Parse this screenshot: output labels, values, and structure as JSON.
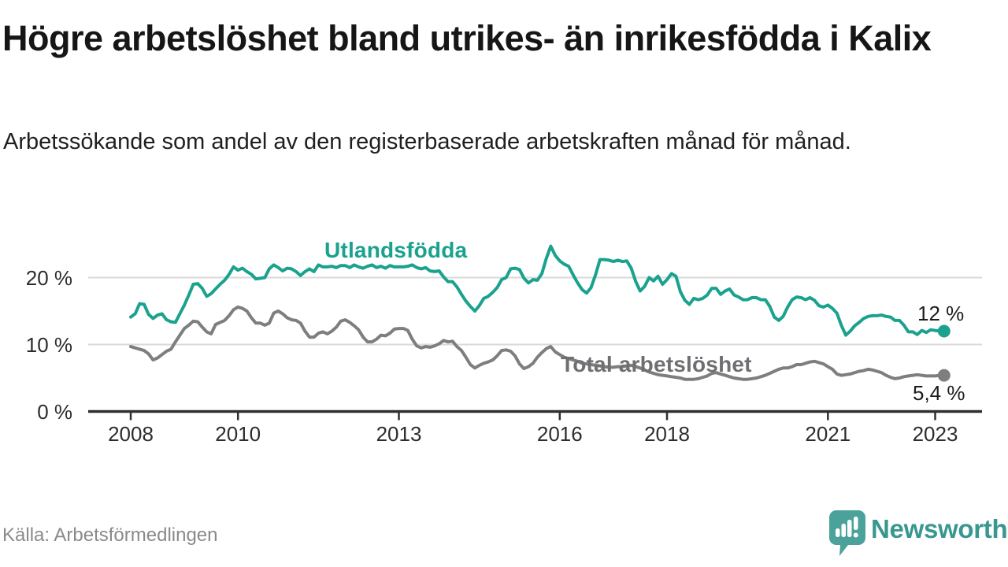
{
  "header": {
    "title": "Högre arbetslöshet bland utrikes- än inrikesfödda i Kalix",
    "subtitle": "Arbetssökande som andel av den registerbaserade arbetskraften månad för månad."
  },
  "footer": {
    "source": "Källa: Arbetsförmedlingen",
    "brand": "Newsworthy",
    "brand_color": "#4aa29b"
  },
  "chart_data": {
    "type": "line",
    "title": "Högre arbetslöshet bland utrikes- än inrikesfödda i Kalix",
    "subtitle": "Arbetssökande som andel av den registerbaserade arbetskraften månad för månad.",
    "unit": "%",
    "grid": "horizontal",
    "legend_position": "inline-labels",
    "x": {
      "frequency": "monthly",
      "start": "2008-01",
      "end": "2023-03",
      "tick_labels": [
        "2008",
        "2010",
        "2013",
        "2016",
        "2018",
        "2021",
        "2023"
      ]
    },
    "y": {
      "ticks": [
        0,
        10,
        20
      ],
      "tick_labels": [
        "0 %",
        "10 %",
        "20 %"
      ],
      "ylim": [
        0,
        27
      ]
    },
    "series": [
      {
        "name": "Utlandsfödda",
        "color": "#1aa28e",
        "label_color": "#1aa28e",
        "end_label": "12 %",
        "end_value": 12.0,
        "values": [
          14.1,
          14.6,
          16.1,
          16.0,
          14.5,
          13.9,
          14.4,
          14.6,
          13.7,
          13.4,
          13.3,
          14.6,
          15.9,
          17.4,
          19.0,
          19.1,
          18.4,
          17.2,
          17.6,
          18.3,
          19.0,
          19.6,
          20.5,
          21.6,
          21.1,
          21.4,
          20.9,
          20.5,
          19.8,
          19.9,
          20.0,
          21.3,
          21.9,
          21.5,
          21.0,
          21.4,
          21.3,
          20.9,
          20.3,
          20.9,
          21.3,
          20.9,
          21.9,
          21.6,
          21.6,
          21.7,
          21.5,
          21.8,
          21.8,
          21.5,
          21.9,
          21.6,
          21.4,
          21.7,
          21.9,
          21.5,
          21.7,
          21.4,
          21.8,
          21.6,
          21.6,
          21.6,
          21.7,
          21.9,
          21.5,
          21.3,
          21.5,
          21.0,
          20.9,
          21.0,
          20.1,
          19.4,
          19.4,
          18.6,
          17.5,
          16.5,
          15.7,
          15.0,
          15.8,
          16.9,
          17.2,
          17.8,
          18.5,
          19.7,
          20.0,
          21.3,
          21.4,
          21.2,
          19.9,
          19.2,
          19.7,
          19.6,
          20.6,
          22.9,
          24.7,
          23.3,
          22.5,
          22.0,
          21.7,
          20.4,
          19.2,
          18.2,
          17.7,
          18.5,
          20.4,
          22.7,
          22.7,
          22.6,
          22.4,
          22.6,
          22.4,
          22.5,
          21.4,
          19.4,
          18.0,
          18.7,
          20.0,
          19.5,
          20.2,
          19.0,
          19.7,
          20.6,
          20.2,
          17.9,
          16.6,
          16.0,
          16.9,
          16.7,
          16.9,
          17.4,
          18.4,
          18.4,
          17.5,
          18.0,
          18.3,
          17.4,
          17.1,
          16.7,
          16.7,
          17.0,
          17.0,
          16.7,
          16.7,
          15.7,
          14.1,
          13.6,
          14.2,
          15.6,
          16.7,
          17.1,
          17.0,
          16.7,
          17.0,
          16.6,
          15.8,
          15.6,
          15.9,
          15.4,
          14.7,
          12.9,
          11.4,
          12.0,
          12.8,
          13.3,
          13.9,
          14.2,
          14.3,
          14.3,
          14.4,
          14.2,
          14.1,
          13.6,
          13.6,
          12.9,
          11.9,
          11.9,
          11.5,
          12.1,
          11.8,
          12.2,
          12.1,
          12.0,
          12.0
        ]
      },
      {
        "name": "Total arbetslöshet",
        "color": "#7e7e7e",
        "label_color": "#6f6f73",
        "end_label": "5,4 %",
        "end_value": 5.4,
        "values": [
          9.7,
          9.5,
          9.3,
          9.1,
          8.6,
          7.7,
          8.0,
          8.5,
          9.0,
          9.3,
          10.4,
          11.4,
          12.4,
          12.9,
          13.5,
          13.4,
          12.6,
          11.9,
          11.6,
          13.0,
          13.3,
          13.6,
          14.3,
          15.2,
          15.6,
          15.4,
          15.0,
          14.0,
          13.2,
          13.2,
          12.9,
          13.2,
          14.7,
          15.0,
          14.6,
          14.0,
          13.7,
          13.6,
          13.2,
          12.0,
          11.1,
          11.1,
          11.7,
          11.9,
          11.6,
          12.0,
          12.6,
          13.5,
          13.7,
          13.3,
          12.8,
          12.2,
          11.1,
          10.4,
          10.4,
          10.8,
          11.4,
          11.3,
          11.7,
          12.3,
          12.4,
          12.4,
          12.1,
          10.8,
          9.8,
          9.5,
          9.7,
          9.6,
          9.8,
          10.1,
          10.6,
          10.4,
          10.5,
          9.7,
          9.1,
          8.1,
          7.0,
          6.5,
          6.9,
          7.2,
          7.4,
          7.7,
          8.3,
          9.1,
          9.2,
          9.0,
          8.3,
          7.1,
          6.4,
          6.7,
          7.2,
          8.1,
          8.8,
          9.4,
          9.7,
          8.9,
          8.5,
          8.1,
          7.9,
          7.7,
          7.5,
          7.2,
          7.1,
          7.0,
          6.9,
          6.8,
          6.7,
          6.6,
          6.6,
          6.7,
          6.7,
          6.8,
          6.9,
          6.7,
          6.5,
          6.2,
          5.9,
          5.7,
          5.5,
          5.4,
          5.3,
          5.2,
          5.1,
          5.0,
          4.8,
          4.8,
          4.8,
          4.9,
          5.1,
          5.3,
          5.7,
          5.8,
          5.6,
          5.4,
          5.2,
          5.0,
          4.9,
          4.8,
          4.8,
          4.9,
          5.0,
          5.2,
          5.4,
          5.7,
          6.0,
          6.3,
          6.5,
          6.5,
          6.7,
          7.0,
          7.0,
          7.2,
          7.4,
          7.5,
          7.3,
          7.1,
          6.7,
          6.3,
          5.6,
          5.4,
          5.5,
          5.6,
          5.8,
          6.0,
          6.1,
          6.3,
          6.2,
          6.0,
          5.8,
          5.4,
          5.1,
          4.9,
          5.0,
          5.2,
          5.3,
          5.4,
          5.5,
          5.4,
          5.3,
          5.3,
          5.3,
          5.4,
          5.4
        ]
      }
    ]
  }
}
